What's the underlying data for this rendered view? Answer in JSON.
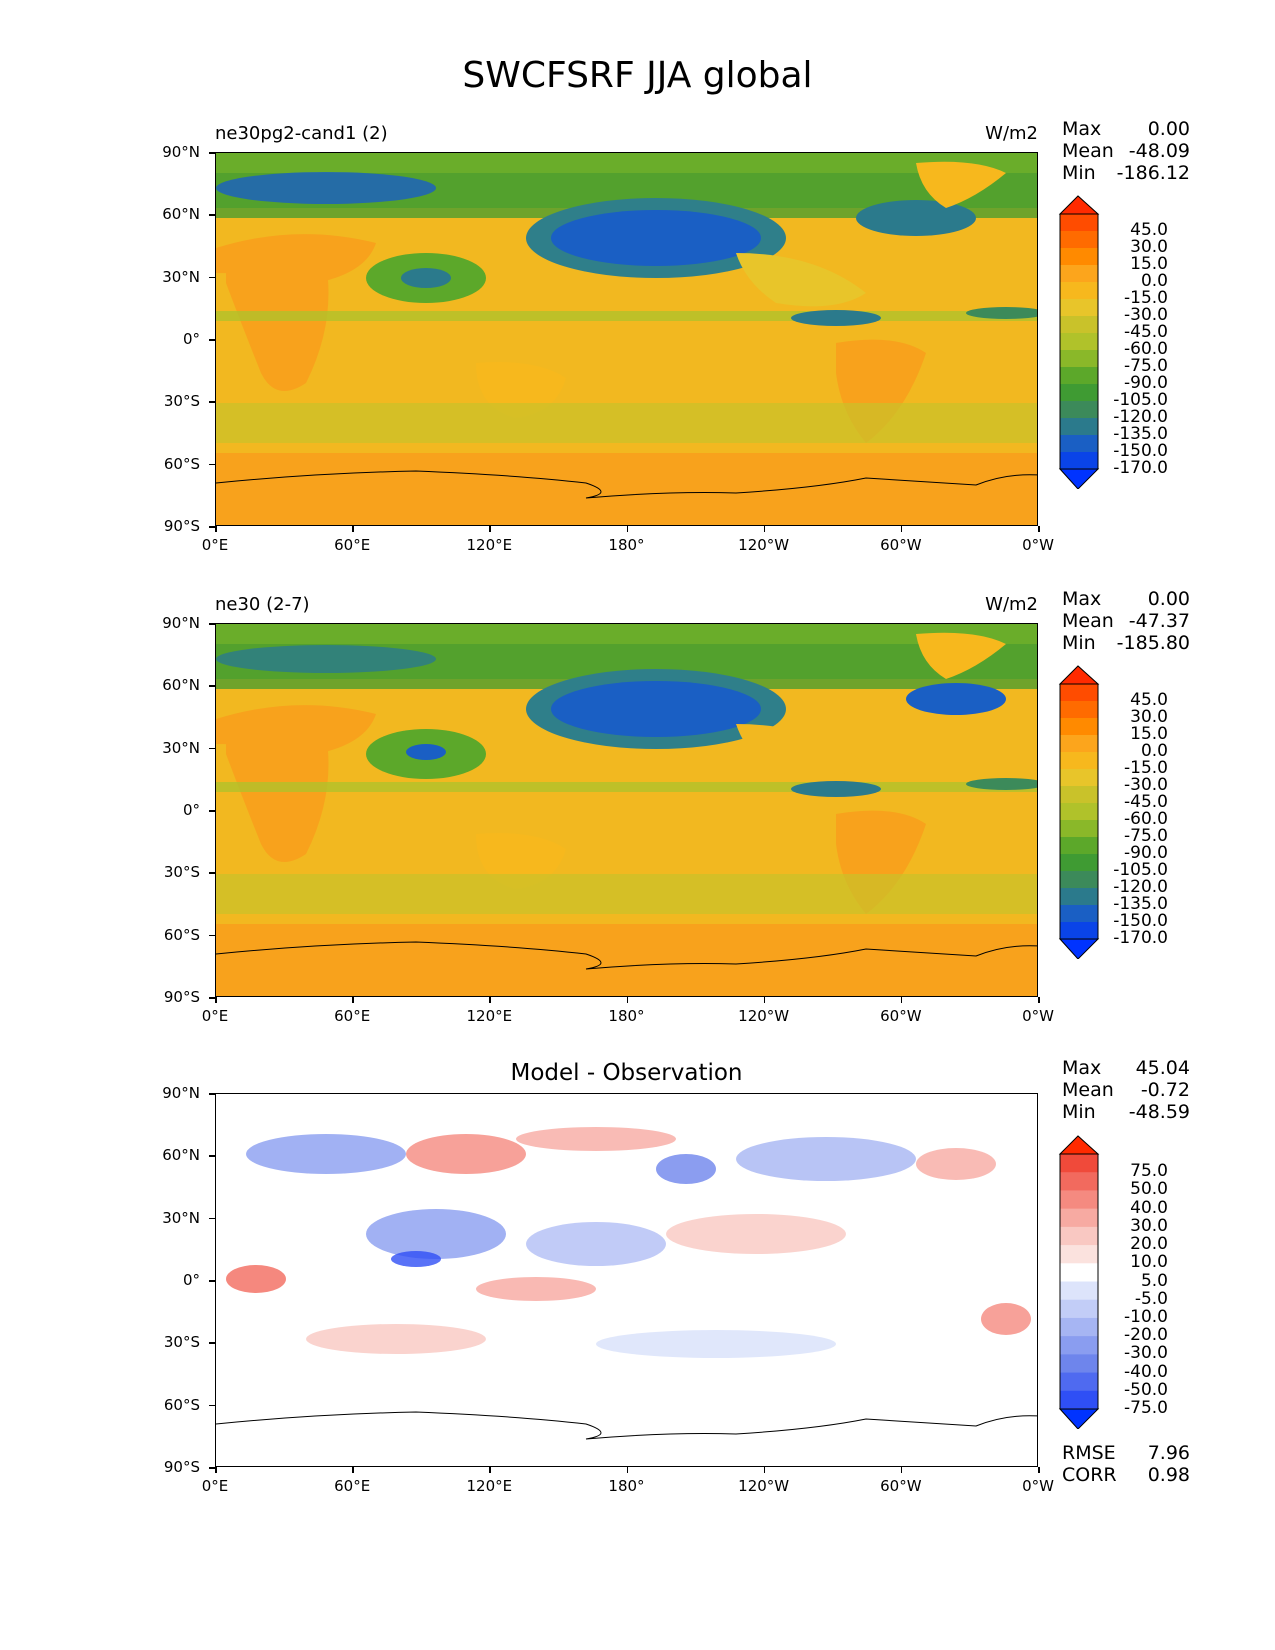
{
  "title": "SWCFSRF JJA global",
  "axes": {
    "yticks": [
      "90°N",
      "60°N",
      "30°N",
      "0°",
      "30°S",
      "60°S",
      "90°S"
    ],
    "xticks": [
      "0°E",
      "60°E",
      "120°E",
      "180°",
      "120°W",
      "60°W",
      "0°W"
    ]
  },
  "panels": [
    {
      "name": "ne30pg2-cand1 (2)",
      "units": "W/m2",
      "stats": [
        {
          "label": "Max",
          "value": "0.00"
        },
        {
          "label": "Mean",
          "value": "-48.09"
        },
        {
          "label": "Min",
          "value": "-186.12"
        }
      ],
      "colorbar": {
        "labels": [
          "45.0",
          "30.0",
          "15.0",
          "0.0",
          "-15.0",
          "-30.0",
          "-45.0",
          "-60.0",
          "-75.0",
          "-90.0",
          "-105.0",
          "-120.0",
          "-135.0",
          "-150.0",
          "-170.0"
        ],
        "colors": [
          "#ff2a00",
          "#ff4c00",
          "#ff6b00",
          "#ff8a00",
          "#fca51c",
          "#f7b81d",
          "#e8c52a",
          "#c9c22a",
          "#b0c22a",
          "#8ab829",
          "#5ca82a",
          "#3f9b33",
          "#3c8a5a",
          "#2b7a8c",
          "#1a5fc4",
          "#0a44e8",
          "#0033ff"
        ]
      }
    },
    {
      "name": "ne30 (2-7)",
      "units": "W/m2",
      "stats": [
        {
          "label": "Max",
          "value": "0.00"
        },
        {
          "label": "Mean",
          "value": "-47.37"
        },
        {
          "label": "Min",
          "value": "-185.80"
        }
      ],
      "colorbar": {
        "labels": [
          "45.0",
          "30.0",
          "15.0",
          "0.0",
          "-15.0",
          "-30.0",
          "-45.0",
          "-60.0",
          "-75.0",
          "-90.0",
          "-105.0",
          "-120.0",
          "-135.0",
          "-150.0",
          "-170.0"
        ],
        "colors": [
          "#ff2a00",
          "#ff4c00",
          "#ff6b00",
          "#ff8a00",
          "#fca51c",
          "#f7b81d",
          "#e8c52a",
          "#c9c22a",
          "#b0c22a",
          "#8ab829",
          "#5ca82a",
          "#3f9b33",
          "#3c8a5a",
          "#2b7a8c",
          "#1a5fc4",
          "#0a44e8",
          "#0033ff"
        ]
      }
    },
    {
      "name": "Model - Observation",
      "units": "",
      "stats": [
        {
          "label": "Max",
          "value": "45.04"
        },
        {
          "label": "Mean",
          "value": "-0.72"
        },
        {
          "label": "Min",
          "value": "-48.59"
        }
      ],
      "extra_stats": [
        {
          "label": "RMSE",
          "value": "7.96"
        },
        {
          "label": "CORR",
          "value": "0.98"
        }
      ],
      "colorbar": {
        "labels": [
          "75.0",
          "50.0",
          "40.0",
          "30.0",
          "20.0",
          "10.0",
          "5.0",
          "-5.0",
          "-10.0",
          "-20.0",
          "-30.0",
          "-40.0",
          "-50.0",
          "-75.0"
        ],
        "colors": [
          "#ff2a00",
          "#f04a3a",
          "#f26a5e",
          "#f58a80",
          "#f7aaa2",
          "#f9c8c2",
          "#fbe2de",
          "#ffffff",
          "#dde4fb",
          "#c2cdf7",
          "#a6b5f3",
          "#8a9df0",
          "#6e85ec",
          "#4f6af0",
          "#2f4ff5",
          "#0033ff"
        ]
      }
    }
  ]
}
